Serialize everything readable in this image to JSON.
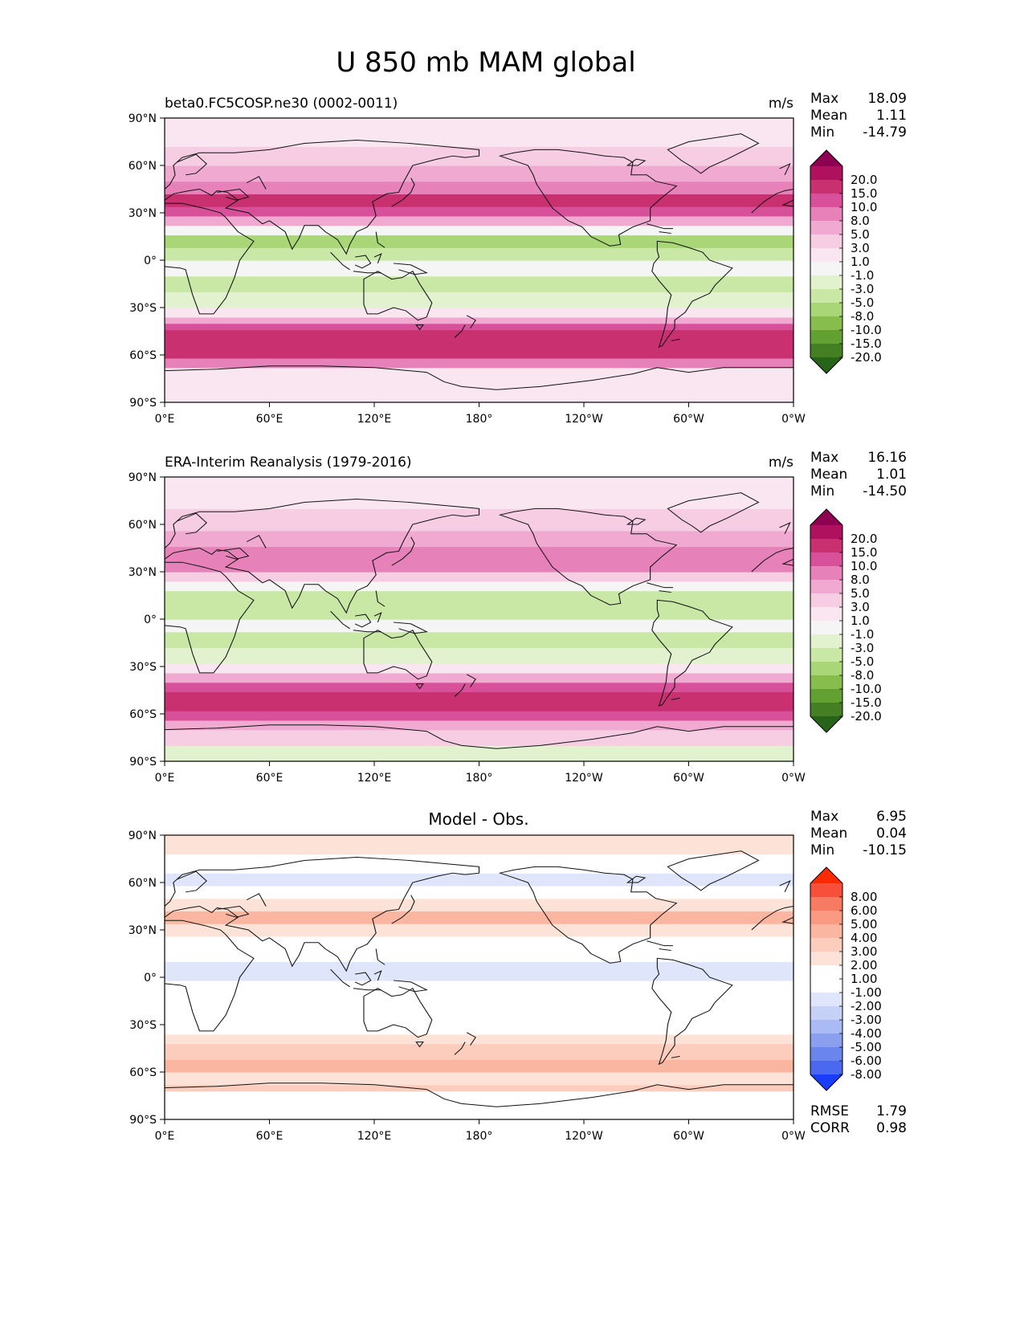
{
  "title": "U 850 mb MAM global",
  "x_ticks": [
    "0°E",
    "60°E",
    "120°E",
    "180°",
    "120°W",
    "60°W",
    "0°W"
  ],
  "y_ticks": [
    "90°N",
    "60°N",
    "30°N",
    "0°",
    "30°S",
    "60°S",
    "90°S"
  ],
  "stat_labels": {
    "max": "Max",
    "mean": "Mean",
    "min": "Min",
    "rmse": "RMSE",
    "corr": "CORR"
  },
  "panels": [
    {
      "id": "model",
      "left_title": "beta0.FC5COSP.ne30 (0002-0011)",
      "center_title": "",
      "units": "m/s",
      "stats": {
        "max": "18.09",
        "mean": "1.11",
        "min": "-14.79"
      },
      "colorbar": {
        "levels": [
          "20.0",
          "15.0",
          "10.0",
          "8.0",
          "5.0",
          "3.0",
          "1.0",
          "-1.0",
          "-3.0",
          "-5.0",
          "-8.0",
          "-10.0",
          "-15.0",
          "-20.0"
        ],
        "colors": [
          "#8e0152",
          "#b0115f",
          "#c9306f",
          "#d8509a",
          "#e682b9",
          "#f0aad1",
          "#f6cde3",
          "#fae6f0",
          "#f5f5f5",
          "#e2f2ce",
          "#c9e7a5",
          "#a9d677",
          "#86bd4c",
          "#63a032",
          "#447f24",
          "#276419"
        ]
      }
    },
    {
      "id": "obs",
      "left_title": "ERA-Interim Reanalysis (1979-2016)",
      "center_title": "",
      "units": "m/s",
      "stats": {
        "max": "16.16",
        "mean": "1.01",
        "min": "-14.50"
      },
      "colorbar": {
        "levels": [
          "20.0",
          "15.0",
          "10.0",
          "8.0",
          "5.0",
          "3.0",
          "1.0",
          "-1.0",
          "-3.0",
          "-5.0",
          "-8.0",
          "-10.0",
          "-15.0",
          "-20.0"
        ],
        "colors": [
          "#8e0152",
          "#b0115f",
          "#c9306f",
          "#d8509a",
          "#e682b9",
          "#f0aad1",
          "#f6cde3",
          "#fae6f0",
          "#f5f5f5",
          "#e2f2ce",
          "#c9e7a5",
          "#a9d677",
          "#86bd4c",
          "#63a032",
          "#447f24",
          "#276419"
        ]
      }
    },
    {
      "id": "diff",
      "left_title": "",
      "center_title": "Model - Obs.",
      "units": "",
      "stats": {
        "max": "6.95",
        "mean": "0.04",
        "min": "-10.15",
        "rmse": "1.79",
        "corr": "0.98"
      },
      "colorbar": {
        "levels": [
          "8.00",
          "6.00",
          "5.00",
          "4.00",
          "3.00",
          "2.00",
          "1.00",
          "-1.00",
          "-2.00",
          "-3.00",
          "-4.00",
          "-5.00",
          "-6.00",
          "-8.00"
        ],
        "colors": [
          "#ff2a00",
          "#f6503a",
          "#f77a62",
          "#fa9a82",
          "#fbb6a2",
          "#fcccbd",
          "#fde2d8",
          "#ffffff",
          "#ffffff",
          "#dfe5fb",
          "#c6d1f8",
          "#a9baf4",
          "#8aa0ef",
          "#6a85eb",
          "#4a69ee",
          "#1a3cff"
        ]
      }
    }
  ],
  "chart_data": [
    {
      "type": "heatmap",
      "title": "beta0.FC5COSP.ne30 (0002-0011)",
      "units": "m/s",
      "x_range": [
        "0°E",
        "0°W"
      ],
      "y_range": [
        "90°S",
        "90°N"
      ],
      "stats": {
        "max": 18.09,
        "mean": 1.11,
        "min": -14.79
      },
      "bands": [
        {
          "lat_range": [
            -90,
            -68
          ],
          "value": 1
        },
        {
          "lat_range": [
            -68,
            -62
          ],
          "value": 6
        },
        {
          "lat_range": [
            -62,
            -56
          ],
          "value": 12
        },
        {
          "lat_range": [
            -56,
            -44
          ],
          "value": 14
        },
        {
          "lat_range": [
            -44,
            -40
          ],
          "value": 9
        },
        {
          "lat_range": [
            -40,
            -36
          ],
          "value": 4
        },
        {
          "lat_range": [
            -36,
            -30
          ],
          "value": 1
        },
        {
          "lat_range": [
            -30,
            -20
          ],
          "value": -4
        },
        {
          "lat_range": [
            -20,
            -10
          ],
          "value": -6
        },
        {
          "lat_range": [
            -10,
            0
          ],
          "value": -2
        },
        {
          "lat_range": [
            0,
            8
          ],
          "value": -7
        },
        {
          "lat_range": [
            8,
            16
          ],
          "value": -9
        },
        {
          "lat_range": [
            16,
            22
          ],
          "value": -2
        },
        {
          "lat_range": [
            22,
            28
          ],
          "value": 4
        },
        {
          "lat_range": [
            28,
            34
          ],
          "value": 9
        },
        {
          "lat_range": [
            34,
            42
          ],
          "value": 12
        },
        {
          "lat_range": [
            42,
            50
          ],
          "value": 7
        },
        {
          "lat_range": [
            50,
            60
          ],
          "value": 4
        },
        {
          "lat_range": [
            60,
            72
          ],
          "value": 2
        },
        {
          "lat_range": [
            72,
            90
          ],
          "value": -0.5
        }
      ]
    },
    {
      "type": "heatmap",
      "title": "ERA-Interim Reanalysis (1979-2016)",
      "units": "m/s",
      "x_range": [
        "0°E",
        "0°W"
      ],
      "y_range": [
        "90°S",
        "90°N"
      ],
      "stats": {
        "max": 16.16,
        "mean": 1.01,
        "min": -14.5
      },
      "bands": [
        {
          "lat_range": [
            -90,
            -80
          ],
          "value": -3
        },
        {
          "lat_range": [
            -80,
            -70
          ],
          "value": 2
        },
        {
          "lat_range": [
            -70,
            -64
          ],
          "value": 4
        },
        {
          "lat_range": [
            -64,
            -58
          ],
          "value": 10
        },
        {
          "lat_range": [
            -58,
            -46
          ],
          "value": 13
        },
        {
          "lat_range": [
            -46,
            -40
          ],
          "value": 9
        },
        {
          "lat_range": [
            -40,
            -34
          ],
          "value": 4
        },
        {
          "lat_range": [
            -34,
            -28
          ],
          "value": 0
        },
        {
          "lat_range": [
            -28,
            -18
          ],
          "value": -4
        },
        {
          "lat_range": [
            -18,
            -8
          ],
          "value": -6
        },
        {
          "lat_range": [
            -8,
            0
          ],
          "value": -2
        },
        {
          "lat_range": [
            0,
            8
          ],
          "value": -5
        },
        {
          "lat_range": [
            8,
            18
          ],
          "value": -7
        },
        {
          "lat_range": [
            18,
            24
          ],
          "value": -2
        },
        {
          "lat_range": [
            24,
            30
          ],
          "value": 3
        },
        {
          "lat_range": [
            30,
            36
          ],
          "value": 6
        },
        {
          "lat_range": [
            36,
            46
          ],
          "value": 8
        },
        {
          "lat_range": [
            46,
            56
          ],
          "value": 5
        },
        {
          "lat_range": [
            56,
            70
          ],
          "value": 3
        },
        {
          "lat_range": [
            70,
            90
          ],
          "value": 0
        }
      ]
    },
    {
      "type": "heatmap",
      "title": "Model - Obs.",
      "units": "",
      "x_range": [
        "0°E",
        "0°W"
      ],
      "y_range": [
        "90°S",
        "90°N"
      ],
      "stats": {
        "max": 6.95,
        "mean": 0.04,
        "min": -10.15,
        "rmse": 1.79,
        "corr": 0.98
      },
      "bands": [
        {
          "lat_range": [
            -90,
            -72
          ],
          "value": 0
        },
        {
          "lat_range": [
            -72,
            -68
          ],
          "value": 2.5
        },
        {
          "lat_range": [
            -68,
            -60
          ],
          "value": 2
        },
        {
          "lat_range": [
            -60,
            -52
          ],
          "value": 3.5
        },
        {
          "lat_range": [
            -52,
            -42
          ],
          "value": 2.5
        },
        {
          "lat_range": [
            -42,
            -36
          ],
          "value": 1.5
        },
        {
          "lat_range": [
            -36,
            -26
          ],
          "value": 0
        },
        {
          "lat_range": [
            -26,
            -20
          ],
          "value": -1.5
        },
        {
          "lat_range": [
            -20,
            -10
          ],
          "value": -1
        },
        {
          "lat_range": [
            -10,
            -2
          ],
          "value": 0
        },
        {
          "lat_range": [
            -2,
            10
          ],
          "value": -2.5
        },
        {
          "lat_range": [
            10,
            18
          ],
          "value": -1.5
        },
        {
          "lat_range": [
            18,
            26
          ],
          "value": 0
        },
        {
          "lat_range": [
            26,
            34
          ],
          "value": 1.5
        },
        {
          "lat_range": [
            34,
            42
          ],
          "value": 3.5
        },
        {
          "lat_range": [
            42,
            50
          ],
          "value": 1.5
        },
        {
          "lat_range": [
            50,
            58
          ],
          "value": -1.5
        },
        {
          "lat_range": [
            58,
            66
          ],
          "value": -2.5
        },
        {
          "lat_range": [
            66,
            78
          ],
          "value": -1
        },
        {
          "lat_range": [
            78,
            90
          ],
          "value": 1.5
        }
      ]
    }
  ]
}
